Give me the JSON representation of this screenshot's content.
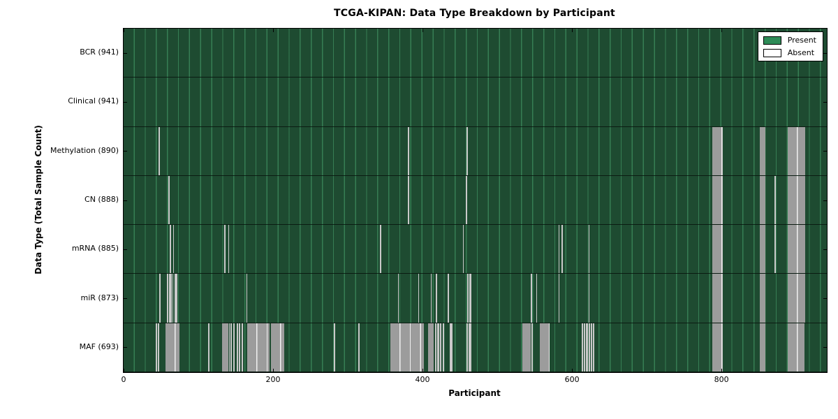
{
  "title": "TCGA-KIPAN: Data Type Breakdown by Participant",
  "xlabel": "Participant",
  "ylabel": "Data Type (Total Sample Count)",
  "legend": {
    "present_label": "Present",
    "absent_label": "Absent"
  },
  "colors": {
    "present": "#2E8B57",
    "absent": "#FFFFFF",
    "present_fill_rendered": "#1e4b31",
    "absent_block_rendered": "#9c9c9c",
    "border": "#000000"
  },
  "chart_data": {
    "type": "heatmap",
    "title": "TCGA-KIPAN: Data Type Breakdown by Participant",
    "xlabel": "Participant",
    "ylabel": "Data Type (Total Sample Count)",
    "legend_entries": [
      "Present",
      "Absent"
    ],
    "legend_position": "upper right",
    "x_min": 0,
    "x_max": 941,
    "x_ticks": [
      0,
      200,
      400,
      600,
      800
    ],
    "x_tick_labels": [
      "0",
      "200",
      "400",
      "600",
      "800"
    ],
    "total_participants": 941,
    "rows": [
      {
        "name": "bcr",
        "label": "BCR (941)",
        "data_type": "BCR",
        "present_count": 941,
        "absent_segments": []
      },
      {
        "name": "clinical",
        "label": "Clinical (941)",
        "data_type": "Clinical",
        "present_count": 941,
        "absent_segments": []
      },
      {
        "name": "methylation",
        "label": "Methylation (890)",
        "data_type": "Methylation",
        "present_count": 890,
        "absent_segments": [
          [
            47,
            49
          ],
          [
            380,
            382
          ],
          [
            459,
            461
          ],
          [
            788,
            802
          ],
          [
            851,
            859
          ],
          [
            889,
            912
          ]
        ]
      },
      {
        "name": "cn",
        "label": "CN (888)",
        "data_type": "CN",
        "present_count": 888,
        "absent_segments": [
          [
            60,
            62
          ],
          [
            380,
            382
          ],
          [
            458,
            460
          ],
          [
            788,
            802
          ],
          [
            851,
            859
          ],
          [
            871,
            873
          ],
          [
            889,
            912
          ]
        ]
      },
      {
        "name": "mrna",
        "label": "mRNA (885)",
        "data_type": "mRNA",
        "present_count": 885,
        "absent_segments": [
          [
            62,
            63
          ],
          [
            66,
            67
          ],
          [
            135,
            136
          ],
          [
            140,
            141
          ],
          [
            343,
            344
          ],
          [
            454,
            455
          ],
          [
            582,
            583
          ],
          [
            586,
            587
          ],
          [
            622,
            623
          ],
          [
            788,
            802
          ],
          [
            851,
            859
          ],
          [
            871,
            873
          ],
          [
            889,
            912
          ]
        ]
      },
      {
        "name": "mir",
        "label": "miR (873)",
        "data_type": "miR",
        "present_count": 873,
        "absent_segments": [
          [
            48,
            49
          ],
          [
            58,
            60
          ],
          [
            61,
            62
          ],
          [
            63,
            64
          ],
          [
            65,
            66
          ],
          [
            68,
            72
          ],
          [
            164,
            165
          ],
          [
            367,
            368
          ],
          [
            394,
            395
          ],
          [
            411,
            412
          ],
          [
            418,
            419
          ],
          [
            434,
            435
          ],
          [
            460,
            462
          ],
          [
            463,
            465
          ],
          [
            545,
            546
          ],
          [
            552,
            553
          ],
          [
            582,
            583
          ],
          [
            622,
            623
          ],
          [
            788,
            802
          ],
          [
            851,
            859
          ],
          [
            889,
            912
          ]
        ]
      },
      {
        "name": "maf",
        "label": "MAF (693)",
        "data_type": "MAF",
        "present_count": 693,
        "absent_segments": [
          [
            43,
            45
          ],
          [
            46,
            48
          ],
          [
            56,
            75
          ],
          [
            113,
            115
          ],
          [
            132,
            140
          ],
          [
            141,
            142
          ],
          [
            143,
            145
          ],
          [
            147,
            149
          ],
          [
            151,
            153
          ],
          [
            154,
            156
          ],
          [
            158,
            159
          ],
          [
            165,
            195
          ],
          [
            197,
            215
          ],
          [
            281,
            283
          ],
          [
            314,
            316
          ],
          [
            357,
            402
          ],
          [
            407,
            415
          ],
          [
            417,
            419
          ],
          [
            420,
            422
          ],
          [
            423,
            425
          ],
          [
            427,
            429
          ],
          [
            436,
            440
          ],
          [
            459,
            461
          ],
          [
            462,
            465
          ],
          [
            534,
            545
          ],
          [
            546,
            547
          ],
          [
            557,
            570
          ],
          [
            613,
            615
          ],
          [
            616,
            618
          ],
          [
            619,
            621
          ],
          [
            622,
            624
          ],
          [
            625,
            627
          ],
          [
            628,
            630
          ],
          [
            788,
            802
          ],
          [
            851,
            859
          ],
          [
            889,
            911
          ]
        ]
      }
    ]
  }
}
